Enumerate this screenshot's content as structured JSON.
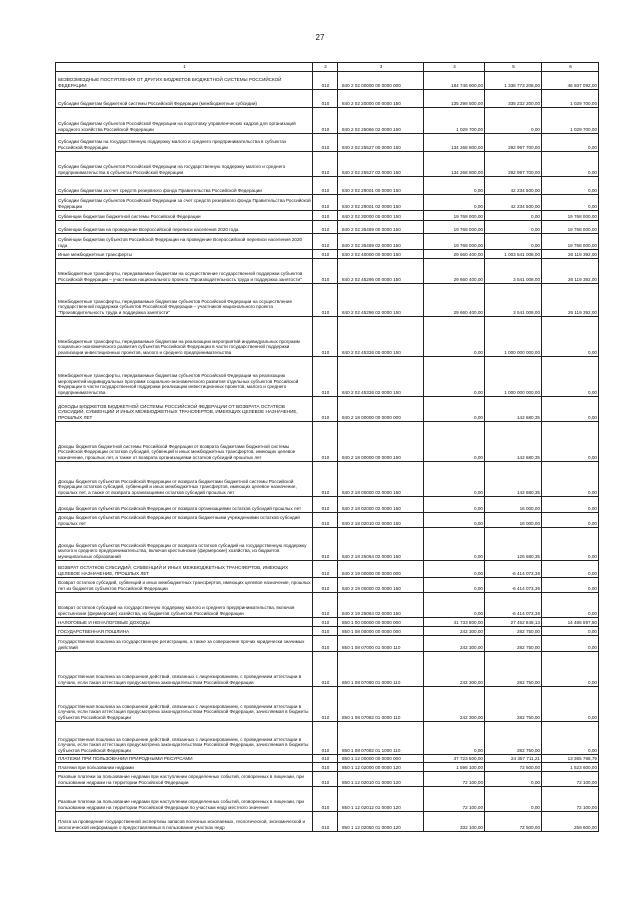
{
  "page_number": "27",
  "columns": [
    "1",
    "2",
    "3",
    "4",
    "5",
    "6"
  ],
  "rows": [
    {
      "name": "БЕЗВОЗМЕЗДНЫЕ ПОСТУПЛЕНИЯ ОТ ДРУГИХ БЮДЖЕТОВ БЮДЖЕТНОЙ СИСТЕМЫ РОССИЙСКОЙ ФЕДЕРАЦИИ",
      "line": "010",
      "code": "840 2 02 00000 00 0000 000",
      "c4": "184 746 900,00",
      "c5": "1 338 773 208,00",
      "c6": "46 937 092,00"
    },
    {
      "name": "Субсидии бюджетам бюджетной системы Российской Федерации (межбюджетные субсидии)",
      "line": "010",
      "code": "840 2 02 20000 00 0000 150",
      "c4": "135 298 500,00",
      "c5": "335 232 200,00",
      "c6": "1 029 700,00"
    },
    {
      "name": "Субсидии бюджетам субъектов Российской Федерации на подготовку управленческих кадров для организаций народного хозяйства Российской Федерации",
      "line": "010",
      "code": "840 2 02 25066 02 0000 150",
      "c4": "1 029 700,00",
      "c5": "0,00",
      "c6": "1 029 700,00"
    },
    {
      "name": "Субсидии бюджетам на государственную поддержку малого и среднего предпринимательства в субъектах Российской Федерации",
      "line": "010",
      "code": "840 2 02 25527 00 0000 150",
      "c4": "134 268 800,00",
      "c5": "292 997 700,00",
      "c6": "0,00"
    },
    {
      "name": "Субсидии бюджетам субъектов Российской Федерации на государственную поддержку малого и среднего предпринимательства в субъектах Российской Федерации",
      "line": "010",
      "code": "840 2 02 25527 02 0000 150",
      "c4": "134 268 800,00",
      "c5": "292 997 700,00",
      "c6": "0,00"
    },
    {
      "name": "Субсидии бюджетам за счет средств резервного фонда Правительства Российской Федерации",
      "line": "010",
      "code": "840 2 02 29001 00 0000 150",
      "c4": "0,00",
      "c5": "42 234 500,00",
      "c6": "0,00"
    },
    {
      "name": "Субсидии бюджетам субъектов Российской Федерации за счет средств резервного фонда Правительства Российской Федерации",
      "line": "010",
      "code": "840 2 02 29001 02 0000 150",
      "c4": "0,00",
      "c5": "42 234 500,00",
      "c6": "0,00"
    },
    {
      "name": "Субвенции бюджетам бюджетной системы Российской Федерации",
      "line": "010",
      "code": "840 2 02 30000 00 0000 150",
      "c4": "19 768 000,00",
      "c5": "0,00",
      "c6": "19 768 000,00"
    },
    {
      "name": "Субвенции бюджетам на проведение Всероссийской переписи населения 2020 года",
      "line": "010",
      "code": "840 2 02 35469 00 0000 150",
      "c4": "19 768 000,00",
      "c5": "0,00",
      "c6": "19 768 000,00"
    },
    {
      "name": "Субвенции бюджетам субъектов Российской Федерации на проведение Всероссийской переписи населения 2020 года",
      "line": "010",
      "code": "840 2 02 35469 02 0000 150",
      "c4": "19 768 000,00",
      "c5": "0,00",
      "c6": "19 768 000,00"
    },
    {
      "name": "Иные межбюджетные трансферты",
      "line": "010",
      "code": "840 2 02 40000 00 0000 150",
      "c4": "29 660 400,00",
      "c5": "1 003 541 008,00",
      "c6": "26 119 392,00"
    },
    {
      "name": "Межбюджетные трансферты, передаваемые бюджетам на осуществление государственной поддержки субъектов Российской Федерации – участников национального проекта \"Производительность труда и поддержка занятости\"",
      "line": "010",
      "code": "840 2 02 45296 00 0000 150",
      "c4": "29 660 400,00",
      "c5": "3 541 008,00",
      "c6": "26 119 392,00"
    },
    {
      "name": "Межбюджетные трансферты, передаваемые бюджетам субъектов Российской Федерации на осуществление государственной поддержки субъектов Российской Федерации – участников национального проекта \"Производительность труда и поддержка занятости\"",
      "line": "010",
      "code": "840 2 02 45296 02 0000 150",
      "c4": "29 660 400,00",
      "c5": "3 541 008,00",
      "c6": "26 119 392,00"
    },
    {
      "name": "Межбюджетные трансферты, передаваемые бюджетам на реализацию мероприятий индивидуальных программ социально-экономического развития субъектов Российской Федерации в части государственной поддержки реализации инвестиционных проектов, малого и среднего предпринимательства",
      "line": "010",
      "code": "840 2 02 45326 00 0000 150",
      "c4": "0,00",
      "c5": "1 000 000 000,00",
      "c6": "0,00"
    },
    {
      "name": "Межбюджетные трансферты, передаваемые бюджетам субъектов Российской Федерации на реализацию мероприятий индивидуальных программ социально-экономического развития отдельных субъектов Российской Федерации в части государственной поддержки реализации инвестиционных проектов, малого и среднего предпринимательства",
      "line": "010",
      "code": "840 2 02 45326 02 0000 150",
      "c4": "0,00",
      "c5": "1 000 000 000,00",
      "c6": "0,00"
    },
    {
      "name": "ДОХОДЫ БЮДЖЕТОВ БЮДЖЕТНОЙ СИСТЕМЫ РОССИЙСКОЙ ФЕДЕРАЦИИ ОТ ВОЗВРАТА ОСТАТКОВ СУБСИДИЙ, СУБВЕНЦИЙ И ИНЫХ МЕЖБЮДЖЕТНЫХ ТРАНСФЕРТОВ, ИМЕЮЩИХ ЦЕЛЕВОЕ НАЗНАЧЕНИЕ, ПРОШЛЫХ ЛЕТ",
      "line": "010",
      "code": "840 2 18 00000 00 0000 000",
      "c4": "0,00",
      "c5": "142 680,35",
      "c6": "0,00"
    },
    {
      "name": "Доходы бюджетов бюджетной системы Российской Федерации от возврата бюджетами бюджетной системы Российской Федерации остатков субсидий, субвенций и иных межбюджетных трансфертов, имеющих целевое назначение, прошлых лет, а также от возврата организациями остатков субсидий прошлых лет",
      "line": "010",
      "code": "840 2 18 00000 00 0000 150",
      "c4": "0,00",
      "c5": "142 680,35",
      "c6": "0,00"
    },
    {
      "name": "Доходы бюджетов субъектов Российской Федерации от возврата бюджетами бюджетной системы Российской Федерации остатков субсидий, субвенций и иных межбюджетных трансфертов, имеющих целевое назначение, прошлых лет, а также от возврата организациями остатков субсидий прошлых лет",
      "line": "010",
      "code": "840 2 18 00000 02 0000 150",
      "c4": "0,00",
      "c5": "142 680,35",
      "c6": "0,00"
    },
    {
      "name": "Доходы бюджетов субъектов Российской Федерации от возврата организациями остатков субсидий прошлых лет",
      "line": "010",
      "code": "840 2 18 02000 02 0000 150",
      "c4": "0,00",
      "c5": "16 000,00",
      "c6": "0,00"
    },
    {
      "name": "Доходы бюджетов субъектов Российской Федерации от возврата бюджетными учреждениями остатков субсидий прошлых лет",
      "line": "010",
      "code": "840 2 18 02010 02 0000 150",
      "c4": "0,00",
      "c5": "16 000,00",
      "c6": "0,00"
    },
    {
      "name": "Доходы бюджетов субъектов Российской Федерации от возврата остатков субсидий на государственную поддержку малого и среднего предпринимательства, включая крестьянские (фермерские) хозяйства, из бюджетов муниципальных образований",
      "line": "010",
      "code": "840 2 18 25064 02 0000 150",
      "c4": "0,00",
      "c5": "126 680,35",
      "c6": "0,00"
    },
    {
      "name": "ВОЗВРАТ ОСТАТКОВ СУБСИДИЙ, СУБВЕНЦИЙ И ИНЫХ МЕЖБЮДЖЕТНЫХ ТРАНСФЕРТОВ, ИМЕЮЩИХ ЦЕЛЕВОЕ НАЗНАЧЕНИЕ, ПРОШЛЫХ ЛЕТ",
      "line": "010",
      "code": "840 2 19 00000 00 0000 000",
      "c4": "0,00",
      "c5": "-6 414 073,36",
      "c6": "0,00"
    },
    {
      "name": "Возврат остатков субсидий, субвенций и иных межбюджетных трансфертов, имеющих целевое назначение, прошлых лет из бюджетов субъектов Российской Федерации",
      "line": "010",
      "code": "840 2 19 00000 02 0000 150",
      "c4": "0,00",
      "c5": "-6 414 073,36",
      "c6": "0,00"
    },
    {
      "name": "Возврат остатков субсидий на государственную поддержку малого и среднего предпринимательства, включая крестьянские (фермерские) хозяйства, из бюджетов субъектов Российской Федерации",
      "line": "010",
      "code": "840 2 19 25064 02 0000 150",
      "c4": "0,00",
      "c5": "-6 414 073,36",
      "c6": "0,00"
    },
    {
      "name": "НАЛОГОВЫЕ И НЕНАЛОГОВЫЕ ДОХОДЫ",
      "line": "010",
      "code": "850 1 00 00000 00 0000 000",
      "c4": "41 733 800,00",
      "c5": "27 452 848,13",
      "c6": "14 486 597,50"
    },
    {
      "name": "ГОСУДАРСТВЕННАЯ ПОШЛИНА",
      "line": "010",
      "code": "850 1 08 00000 00 0000 000",
      "c4": "242 300,00",
      "c5": "282 750,00",
      "c6": "0,00"
    },
    {
      "name": "Государственная пошлина за государственную регистрацию, а также за совершение прочих юридически значимых действий",
      "line": "010",
      "code": "850 1 08 07000 01 0000 110",
      "c4": "242 300,00",
      "c5": "282 750,00",
      "c6": "0,00"
    },
    {
      "name": "Государственная пошлина за совершение действий, связанных с лицензированием, с проведением аттестации в случаях, если такая аттестация предусмотрена законодательством Российской Федерации",
      "line": "010",
      "code": "850 1 08 07080 01 0000 110",
      "c4": "242 300,00",
      "c5": "282 750,00",
      "c6": "0,00"
    },
    {
      "name": "Государственная пошлина за совершение действий, связанных с лицензированием, с проведением аттестации в случаях, если такая аттестация предусмотрена законодательством Российской Федерации, зачисляемая в бюджеты субъектов Российской Федерации",
      "line": "010",
      "code": "850 1 08 07082 01 0000 110",
      "c4": "242 300,00",
      "c5": "282 750,00",
      "c6": "0,00"
    },
    {
      "name": "Государственная пошлина за совершение действий, связанных с лицензированием, с проведением аттестации в случаях, если такая аттестация предусмотрена законодательством Российской Федерации, зачисляемая в бюджеты субъектов Российской Федерации",
      "line": "010",
      "code": "850 1 08 07082 01 1000 110",
      "c4": "0,00",
      "c5": "282 750,00",
      "c6": "0,00"
    },
    {
      "name": "ПЛАТЕЖИ ПРИ ПОЛЬЗОВАНИИ ПРИРОДНЫМИ РЕСУРСАМИ",
      "line": "010",
      "code": "850 1 12 00000 00 0000 000",
      "c4": "37 723 500,00",
      "c5": "24 357 711,21",
      "c6": "13 365 788,79"
    },
    {
      "name": "Платежи при пользовании недрами",
      "line": "010",
      "code": "850 1 12 02000 00 0000 120",
      "c4": "1 596 100,00",
      "c5": "72 500,00",
      "c6": "1 523 600,00"
    },
    {
      "name": "Разовые платежи за пользование недрами при наступлении определенных событий, оговоренных в лицензии, при пользовании недрами на территории Российской Федерации",
      "line": "010",
      "code": "850 1 12 02010 01 0000 120",
      "c4": "72 100,00",
      "c5": "0,00",
      "c6": "72 100,00"
    },
    {
      "name": "Разовые платежи за пользование недрами при наступлении определенных событий, оговоренных в лицензии, при пользовании недрами на территории Российской Федерации по участкам недр местного значения",
      "line": "010",
      "code": "850 1 12 02012 01 0000 120",
      "c4": "72 100,00",
      "c5": "0,00",
      "c6": "72 100,00"
    },
    {
      "name": "Плата за проведение государственной экспертизы запасов полезных ископаемых, геологической, экономической и экологической информации о предоставляемых в пользование участках недр",
      "line": "010",
      "code": "850 1 12 02050 01 0000 120",
      "c4": "332 100,00",
      "c5": "72 500,00",
      "c6": "259 600,00"
    }
  ]
}
